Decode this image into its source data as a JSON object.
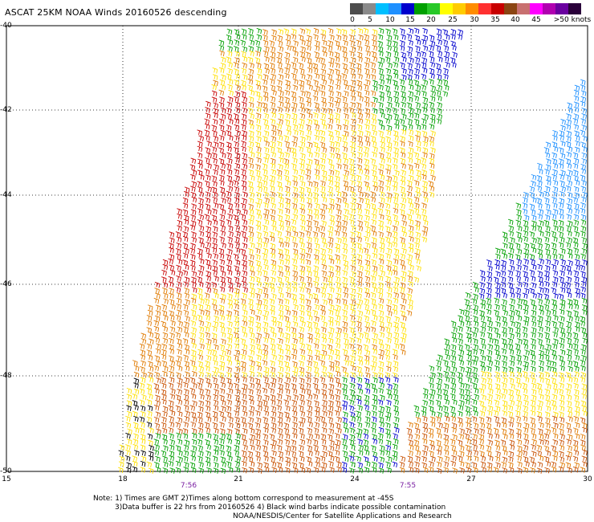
{
  "title": "ASCAT 25KM NOAA Winds 20160526 descending",
  "legend": {
    "labels": [
      "0",
      "5",
      "10",
      "15",
      "20",
      "25",
      "30",
      "35",
      "40",
      "45",
      ">50 knots"
    ],
    "colors": [
      "#4d4d4d",
      "#8a8a8a",
      "#00bfff",
      "#1e90ff",
      "#0000cd",
      "#00a000",
      "#28c828",
      "#ffff00",
      "#ffcc00",
      "#ff8c00",
      "#ff3030",
      "#c80000",
      "#8b4513",
      "#c87070",
      "#ff00ff",
      "#b000b0",
      "#6a00a0",
      "#2a003a"
    ]
  },
  "map": {
    "lat_labels": [
      "-40",
      "-42",
      "-44",
      "-46",
      "-48",
      "-50"
    ],
    "lon_labels": [
      "15",
      "18",
      "21",
      "24",
      "27",
      "30"
    ],
    "time_labels": [
      "7:56",
      "7:55"
    ],
    "barb_colors": {
      "blue": "#0000cd",
      "lightblue": "#1e90ff",
      "green": "#00a000",
      "yellow": "#ffe000",
      "orange": "#e07a00",
      "darkorange": "#c85000",
      "red": "#c80000",
      "black": "#000000"
    }
  },
  "notes": {
    "line1": "Note: 1) Times are GMT 2)Times along bottom correspond to measurement at -45S",
    "line2": "3)Data buffer is 22 hrs from 20160526 4) Black wind barbs indicate possible contamination",
    "line3": "NOAA/NESDIS/Center for Satellite Applications and Research"
  }
}
